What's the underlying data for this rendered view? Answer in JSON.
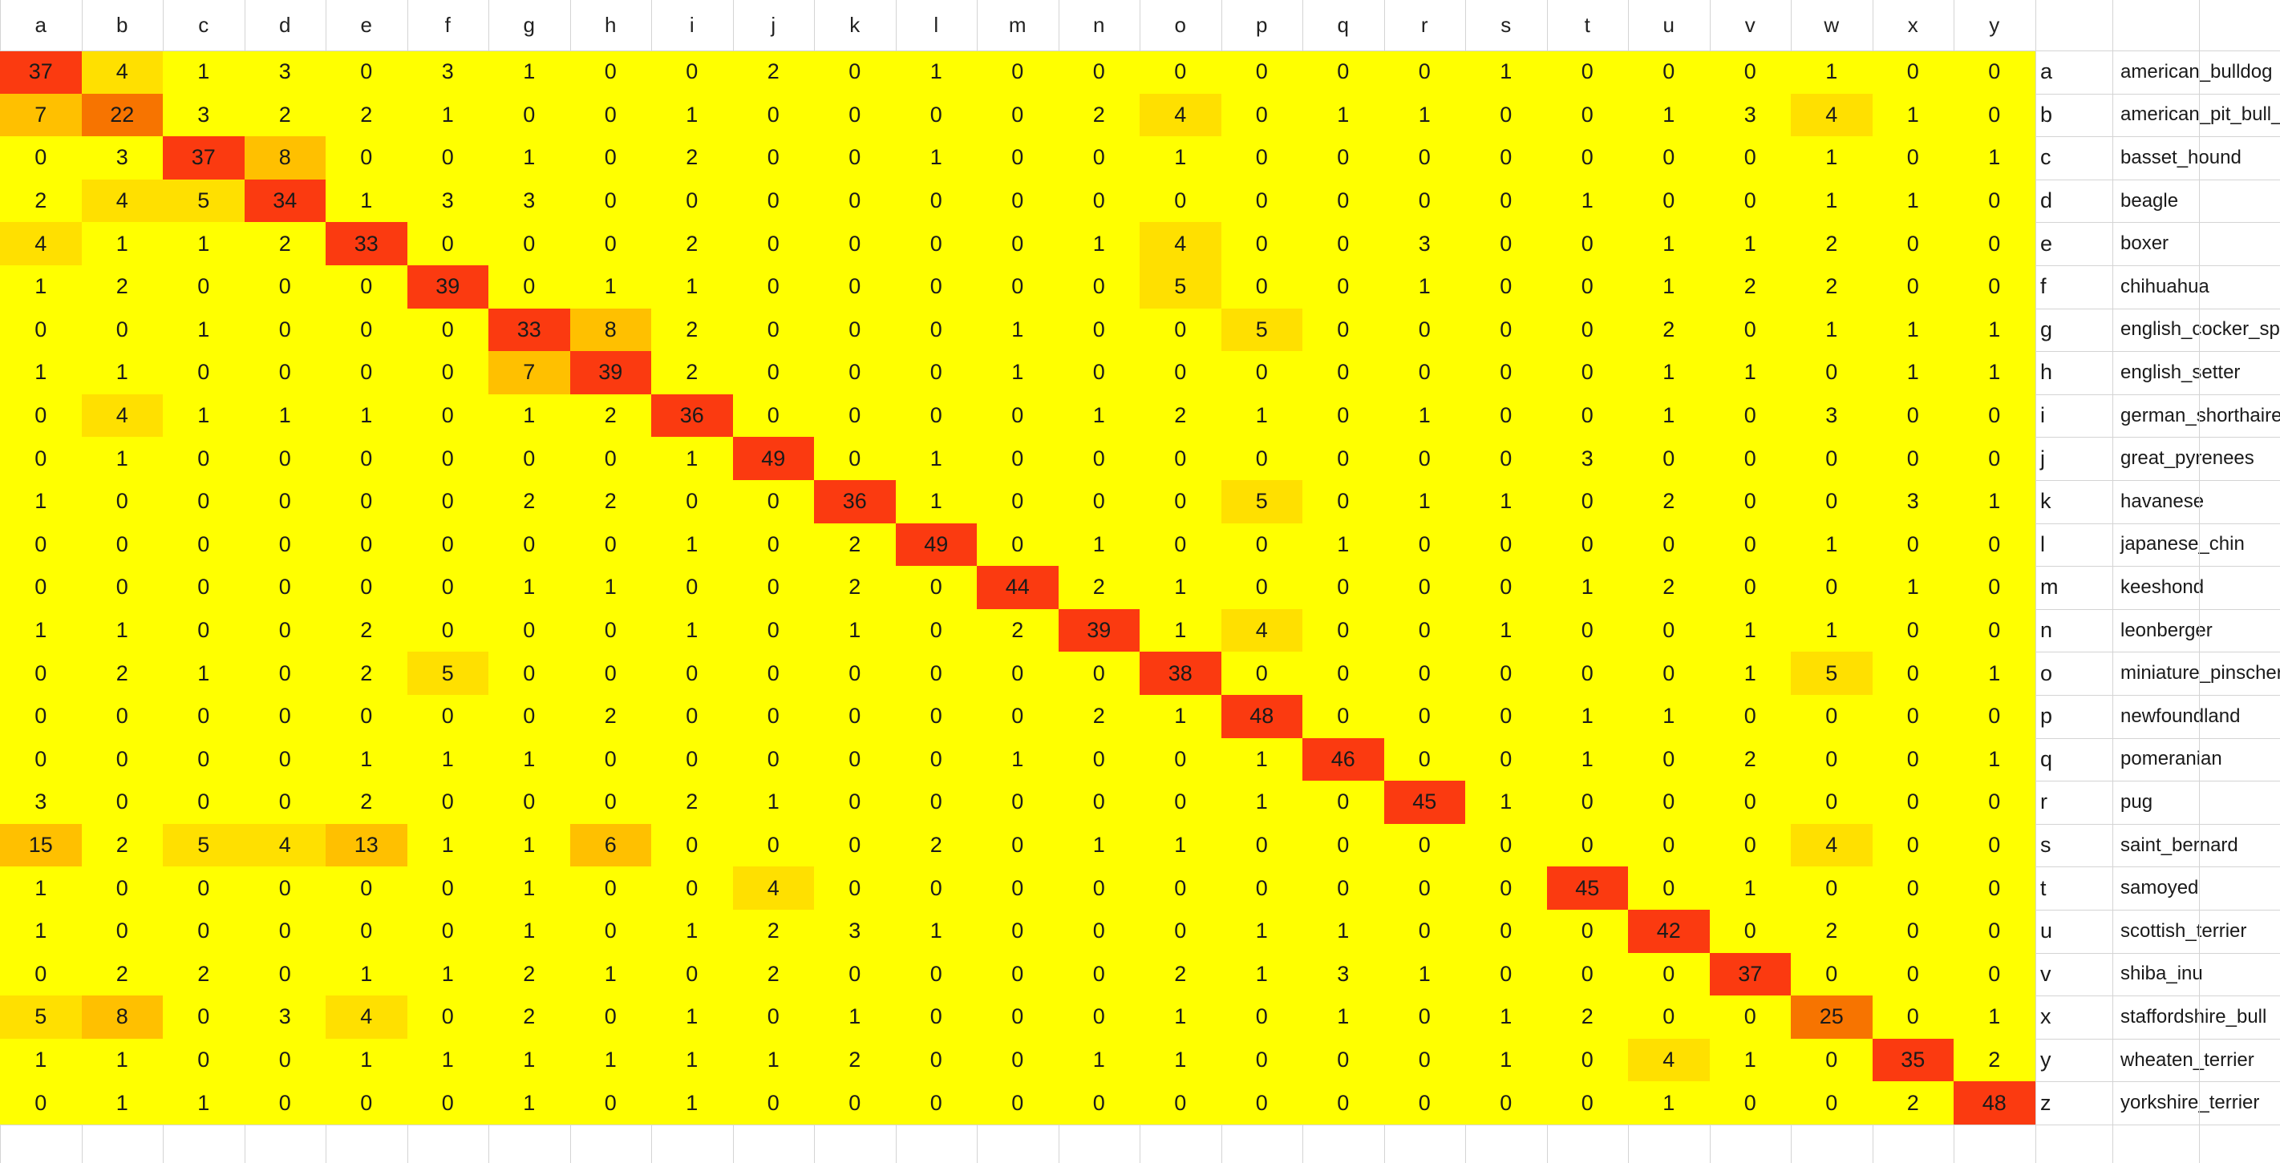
{
  "chart_data": {
    "type": "heatmap",
    "col_labels": [
      "a",
      "b",
      "c",
      "d",
      "e",
      "f",
      "g",
      "h",
      "i",
      "j",
      "k",
      "l",
      "m",
      "n",
      "o",
      "p",
      "q",
      "r",
      "s",
      "t",
      "u",
      "v",
      "w",
      "x",
      "y"
    ],
    "row_codes": [
      "a",
      "b",
      "c",
      "d",
      "e",
      "f",
      "g",
      "h",
      "i",
      "j",
      "k",
      "l",
      "m",
      "n",
      "o",
      "p",
      "q",
      "r",
      "s",
      "t",
      "u",
      "v",
      "x",
      "y",
      "z"
    ],
    "row_names": [
      "american_bulldog",
      "american_pit_bull_",
      "basset_hound",
      "beagle",
      "boxer",
      "chihuahua",
      "english_cocker_spa",
      "english_setter",
      "german_shorthaired",
      "great_pyrenees",
      "havanese",
      "japanese_chin",
      "keeshond",
      "leonberger",
      "miniature_pinscher",
      "newfoundland",
      "pomeranian",
      "pug",
      "saint_bernard",
      "samoyed",
      "scottish_terrier",
      "shiba_inu",
      "staffordshire_bull",
      "wheaten_terrier",
      "yorkshire_terrier"
    ],
    "values": [
      [
        37,
        4,
        1,
        3,
        0,
        3,
        1,
        0,
        0,
        2,
        0,
        1,
        0,
        0,
        0,
        0,
        0,
        0,
        1,
        0,
        0,
        0,
        1,
        0,
        0
      ],
      [
        7,
        22,
        3,
        2,
        2,
        1,
        0,
        0,
        1,
        0,
        0,
        0,
        0,
        2,
        4,
        0,
        1,
        1,
        0,
        0,
        1,
        3,
        4,
        1,
        0
      ],
      [
        0,
        3,
        37,
        8,
        0,
        0,
        1,
        0,
        2,
        0,
        0,
        1,
        0,
        0,
        1,
        0,
        0,
        0,
        0,
        0,
        0,
        0,
        1,
        0,
        1
      ],
      [
        2,
        4,
        5,
        34,
        1,
        3,
        3,
        0,
        0,
        0,
        0,
        0,
        0,
        0,
        0,
        0,
        0,
        0,
        0,
        1,
        0,
        0,
        1,
        1,
        0
      ],
      [
        4,
        1,
        1,
        2,
        33,
        0,
        0,
        0,
        2,
        0,
        0,
        0,
        0,
        1,
        4,
        0,
        0,
        3,
        0,
        0,
        1,
        1,
        2,
        0,
        0
      ],
      [
        1,
        2,
        0,
        0,
        0,
        39,
        0,
        1,
        1,
        0,
        0,
        0,
        0,
        0,
        5,
        0,
        0,
        1,
        0,
        0,
        1,
        2,
        2,
        0,
        0
      ],
      [
        0,
        0,
        1,
        0,
        0,
        0,
        33,
        8,
        2,
        0,
        0,
        0,
        1,
        0,
        0,
        5,
        0,
        0,
        0,
        0,
        2,
        0,
        1,
        1,
        1
      ],
      [
        1,
        1,
        0,
        0,
        0,
        0,
        7,
        39,
        2,
        0,
        0,
        0,
        1,
        0,
        0,
        0,
        0,
        0,
        0,
        0,
        1,
        1,
        0,
        1,
        1
      ],
      [
        0,
        4,
        1,
        1,
        1,
        0,
        1,
        2,
        36,
        0,
        0,
        0,
        0,
        1,
        2,
        1,
        0,
        1,
        0,
        0,
        1,
        0,
        3,
        0,
        0
      ],
      [
        0,
        1,
        0,
        0,
        0,
        0,
        0,
        0,
        1,
        49,
        0,
        1,
        0,
        0,
        0,
        0,
        0,
        0,
        0,
        3,
        0,
        0,
        0,
        0,
        0
      ],
      [
        1,
        0,
        0,
        0,
        0,
        0,
        2,
        2,
        0,
        0,
        36,
        1,
        0,
        0,
        0,
        5,
        0,
        1,
        1,
        0,
        2,
        0,
        0,
        3,
        1
      ],
      [
        0,
        0,
        0,
        0,
        0,
        0,
        0,
        0,
        1,
        0,
        2,
        49,
        0,
        1,
        0,
        0,
        1,
        0,
        0,
        0,
        0,
        0,
        1,
        0,
        0
      ],
      [
        0,
        0,
        0,
        0,
        0,
        0,
        1,
        1,
        0,
        0,
        2,
        0,
        44,
        2,
        1,
        0,
        0,
        0,
        0,
        1,
        2,
        0,
        0,
        1,
        0
      ],
      [
        1,
        1,
        0,
        0,
        2,
        0,
        0,
        0,
        1,
        0,
        1,
        0,
        2,
        39,
        1,
        4,
        0,
        0,
        1,
        0,
        0,
        1,
        1,
        0,
        0
      ],
      [
        0,
        2,
        1,
        0,
        2,
        5,
        0,
        0,
        0,
        0,
        0,
        0,
        0,
        0,
        38,
        0,
        0,
        0,
        0,
        0,
        0,
        1,
        5,
        0,
        1
      ],
      [
        0,
        0,
        0,
        0,
        0,
        0,
        0,
        2,
        0,
        0,
        0,
        0,
        0,
        2,
        1,
        48,
        0,
        0,
        0,
        1,
        1,
        0,
        0,
        0,
        0
      ],
      [
        0,
        0,
        0,
        0,
        1,
        1,
        1,
        0,
        0,
        0,
        0,
        0,
        1,
        0,
        0,
        1,
        46,
        0,
        0,
        1,
        0,
        2,
        0,
        0,
        1
      ],
      [
        3,
        0,
        0,
        0,
        2,
        0,
        0,
        0,
        2,
        1,
        0,
        0,
        0,
        0,
        0,
        1,
        0,
        45,
        1,
        0,
        0,
        0,
        0,
        0,
        0
      ],
      [
        15,
        2,
        5,
        4,
        13,
        1,
        1,
        6,
        0,
        0,
        0,
        2,
        0,
        1,
        1,
        0,
        0,
        0,
        0,
        0,
        0,
        0,
        4,
        0,
        0
      ],
      [
        1,
        0,
        0,
        0,
        0,
        0,
        1,
        0,
        0,
        4,
        0,
        0,
        0,
        0,
        0,
        0,
        0,
        0,
        0,
        45,
        0,
        1,
        0,
        0,
        0
      ],
      [
        1,
        0,
        0,
        0,
        0,
        0,
        1,
        0,
        1,
        2,
        3,
        1,
        0,
        0,
        0,
        1,
        1,
        0,
        0,
        0,
        42,
        0,
        2,
        0,
        0
      ],
      [
        0,
        2,
        2,
        0,
        1,
        1,
        2,
        1,
        0,
        2,
        0,
        0,
        0,
        0,
        2,
        1,
        3,
        1,
        0,
        0,
        0,
        37,
        0,
        0,
        0
      ],
      [
        5,
        8,
        0,
        3,
        4,
        0,
        2,
        0,
        1,
        0,
        1,
        0,
        0,
        0,
        1,
        0,
        1,
        0,
        1,
        2,
        0,
        0,
        25,
        0,
        1
      ],
      [
        1,
        1,
        0,
        0,
        1,
        1,
        1,
        1,
        1,
        1,
        2,
        0,
        0,
        1,
        1,
        0,
        0,
        0,
        1,
        0,
        4,
        1,
        0,
        35,
        2
      ],
      [
        0,
        1,
        1,
        0,
        0,
        0,
        1,
        0,
        1,
        0,
        0,
        0,
        0,
        0,
        0,
        0,
        0,
        0,
        0,
        0,
        1,
        0,
        0,
        2,
        48
      ]
    ],
    "colors": {
      "low": "#ffff00",
      "light": "#ffe000",
      "mid": "#ffc000",
      "high": "#f77400",
      "max": "#fb3a10",
      "grid": "#d4d4d4",
      "header_bg": "#ffffff"
    }
  }
}
